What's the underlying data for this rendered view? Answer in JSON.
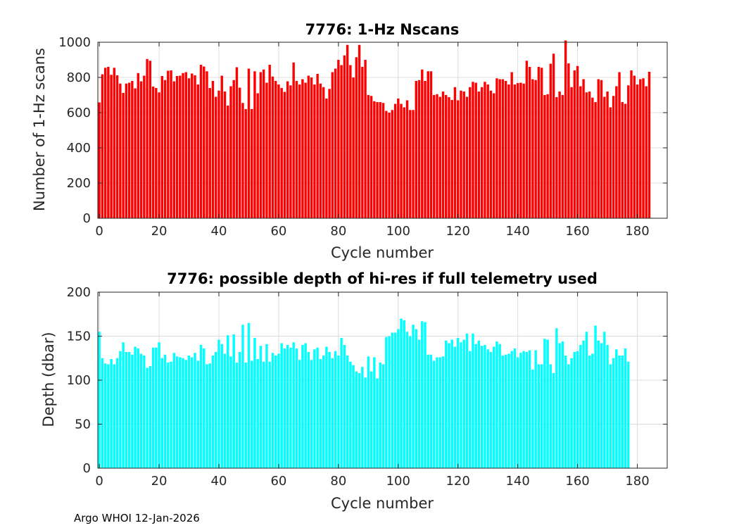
{
  "footer": {
    "text": "Argo WHOI 12-Jan-2026"
  },
  "chart_data": [
    {
      "type": "bar",
      "title": "7776: 1-Hz Nscans",
      "xlabel": "Cycle number",
      "ylabel": "Number of 1-Hz scans",
      "xlim": [
        -0.5,
        190
      ],
      "ylim": [
        0,
        1000
      ],
      "xticks": [
        0,
        20,
        40,
        60,
        80,
        100,
        120,
        140,
        160,
        180
      ],
      "yticks": [
        0,
        200,
        400,
        600,
        800,
        1000
      ],
      "grid": true,
      "color": "#ff0000",
      "x_start": 0,
      "values": [
        658,
        818,
        855,
        860,
        815,
        855,
        812,
        765,
        712,
        765,
        770,
        780,
        738,
        825,
        778,
        810,
        905,
        895,
        748,
        740,
        715,
        808,
        785,
        838,
        840,
        778,
        808,
        810,
        825,
        830,
        795,
        822,
        812,
        760,
        872,
        862,
        835,
        740,
        780,
        690,
        725,
        810,
        720,
        640,
        750,
        785,
        858,
        742,
        655,
        620,
        850,
        620,
        835,
        710,
        830,
        845,
        770,
        872,
        805,
        780,
        760,
        740,
        718,
        778,
        755,
        885,
        780,
        760,
        790,
        770,
        810,
        800,
        760,
        820,
        765,
        745,
        680,
        735,
        830,
        850,
        900,
        870,
        925,
        985,
        870,
        800,
        915,
        985,
        860,
        900,
        700,
        695,
        665,
        660,
        660,
        655,
        610,
        600,
        615,
        650,
        680,
        650,
        630,
        670,
        615,
        615,
        780,
        785,
        845,
        780,
        835,
        835,
        700,
        705,
        690,
        720,
        700,
        688,
        672,
        745,
        670,
        725,
        720,
        690,
        745,
        775,
        770,
        720,
        745,
        775,
        760,
        725,
        710,
        795,
        790,
        790,
        780,
        760,
        830,
        760,
        768,
        770,
        765,
        895,
        860,
        790,
        785,
        860,
        855,
        700,
        705,
        878,
        935,
        688,
        720,
        700,
        1010,
        880,
        745,
        840,
        865,
        750,
        790,
        715,
        720,
        685,
        660,
        790,
        785,
        690,
        720,
        630,
        695,
        750,
        830,
        660,
        650,
        755,
        840,
        810,
        760,
        790,
        795,
        750,
        832
      ]
    },
    {
      "type": "bar",
      "title": "7776: possible depth of hi-res if full telemetry used",
      "xlabel": "Cycle number",
      "ylabel": "Depth (dbar)",
      "xlim": [
        -0.5,
        190
      ],
      "ylim": [
        0,
        200
      ],
      "xticks": [
        0,
        20,
        40,
        60,
        80,
        100,
        120,
        140,
        160,
        180
      ],
      "yticks": [
        0,
        50,
        100,
        150,
        200
      ],
      "grid": true,
      "color": "#00ffff",
      "x_start": 0,
      "values": [
        155,
        125,
        119,
        118,
        124,
        118,
        125,
        133,
        143,
        132,
        132,
        129,
        138,
        136,
        130,
        128,
        114,
        116,
        137,
        137,
        143,
        125,
        129,
        120,
        121,
        131,
        127,
        126,
        125,
        123,
        128,
        126,
        131,
        122,
        140,
        136,
        118,
        119,
        128,
        132,
        146,
        141,
        130,
        151,
        127,
        152,
        120,
        132,
        163,
        120,
        165,
        122,
        148,
        124,
        139,
        121,
        141,
        121,
        131,
        128,
        130,
        142,
        136,
        140,
        137,
        143,
        136,
        123,
        140,
        142,
        132,
        123,
        135,
        137,
        124,
        128,
        138,
        132,
        125,
        133,
        128,
        148,
        140,
        128,
        121,
        117,
        110,
        108,
        115,
        103,
        127,
        110,
        126,
        102,
        120,
        118,
        149,
        150,
        154,
        154,
        158,
        170,
        168,
        155,
        150,
        163,
        158,
        146,
        167,
        166,
        129,
        129,
        122,
        126,
        126,
        127,
        145,
        142,
        146,
        138,
        148,
        143,
        146,
        153,
        133,
        153,
        141,
        145,
        139,
        140,
        135,
        132,
        138,
        144,
        141,
        128,
        129,
        130,
        133,
        136,
        126,
        131,
        133,
        132,
        134,
        112,
        134,
        118,
        118,
        147,
        146,
        118,
        108,
        159,
        142,
        144,
        128,
        118,
        125,
        132,
        133,
        140,
        145,
        155,
        128,
        130,
        162,
        145,
        142,
        155,
        140,
        118,
        125,
        135,
        128,
        128,
        136,
        121
      ]
    }
  ]
}
